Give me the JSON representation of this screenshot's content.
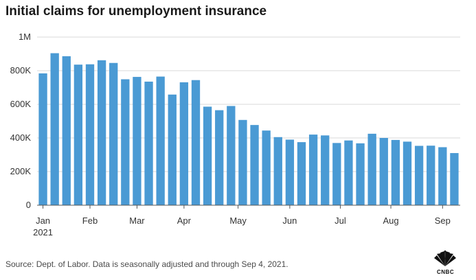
{
  "title": "Initial claims for unemployment insurance",
  "source": "Source: Dept. of Labor. Data is seasonally adjusted and through Sep 4, 2021.",
  "logo": {
    "icon": "nbc-peacock-icon",
    "text": "CNBC"
  },
  "colors": {
    "bar": "#4a9ad4",
    "grid": "#d9d9d9",
    "axis": "#555555"
  },
  "chart_data": {
    "type": "bar",
    "title": "Initial claims for unemployment insurance",
    "xlabel": "",
    "ylabel": "",
    "ylim": [
      0,
      1000000
    ],
    "y_ticks": [
      {
        "value": 0,
        "label": "0"
      },
      {
        "value": 200000,
        "label": "200K"
      },
      {
        "value": 400000,
        "label": "400K"
      },
      {
        "value": 600000,
        "label": "600K"
      },
      {
        "value": 800000,
        "label": "800K"
      },
      {
        "value": 1000000,
        "label": "1M"
      }
    ],
    "x_ticks": [
      {
        "bar_index": 0,
        "label": "Jan",
        "sublabel": "2021"
      },
      {
        "bar_index": 4,
        "label": "Feb"
      },
      {
        "bar_index": 8,
        "label": "Mar"
      },
      {
        "bar_index": 12,
        "label": "Apr"
      },
      {
        "bar_index": 16.6,
        "label": "May"
      },
      {
        "bar_index": 21,
        "label": "Jun"
      },
      {
        "bar_index": 25.3,
        "label": "Jul"
      },
      {
        "bar_index": 29.6,
        "label": "Aug"
      },
      {
        "bar_index": 34,
        "label": "Sep"
      }
    ],
    "grid": true,
    "values": [
      784000,
      904000,
      886000,
      836000,
      838000,
      862000,
      846000,
      749000,
      763000,
      735000,
      765000,
      658000,
      731000,
      744000,
      586000,
      565000,
      590000,
      507000,
      477000,
      444000,
      405000,
      390000,
      375000,
      420000,
      415000,
      370000,
      385000,
      368000,
      425000,
      400000,
      388000,
      378000,
      353000,
      354000,
      345000,
      310000
    ]
  }
}
